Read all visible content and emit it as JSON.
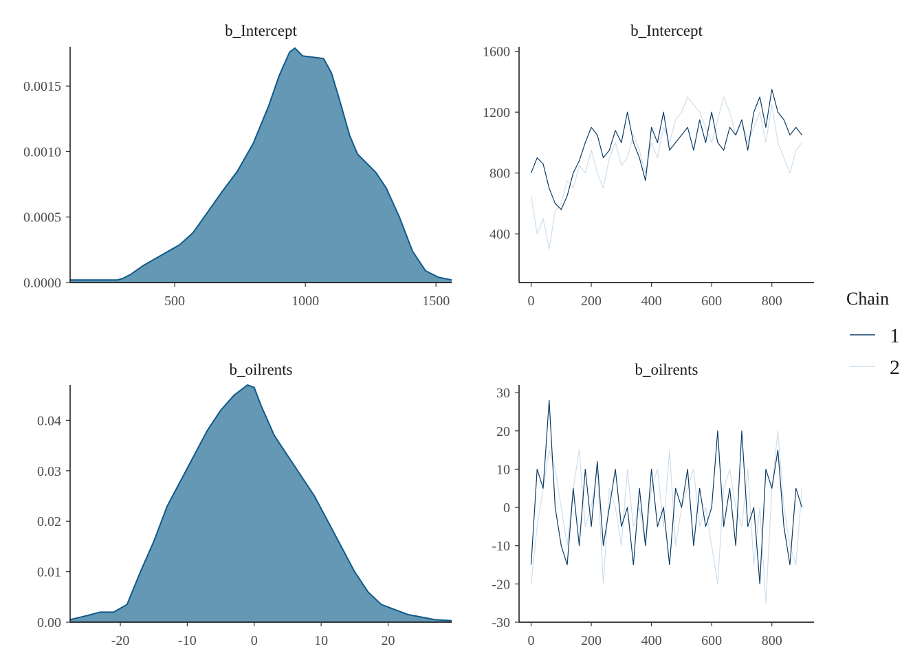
{
  "legend": {
    "title": "Chain",
    "items": [
      {
        "label": "1",
        "color": "#0b3c66"
      },
      {
        "label": "2",
        "color": "#cfdeea"
      }
    ]
  },
  "chart_data": [
    {
      "type": "area",
      "title": "b_Intercept",
      "xlim": [
        100,
        1560
      ],
      "ylim": [
        0,
        0.0018
      ],
      "xticks": [
        500,
        1000,
        1500
      ],
      "xtick_labels": [
        "500",
        "1000",
        "1500"
      ],
      "yticks": [
        0,
        0.0005,
        0.001,
        0.0015
      ],
      "ytick_labels": [
        "0.0000",
        "0.0005",
        "0.0010",
        "0.0015"
      ],
      "fill": "#6498b4",
      "stroke": "#0f5a8a",
      "x": [
        100,
        200,
        280,
        300,
        330,
        380,
        450,
        520,
        570,
        620,
        680,
        740,
        800,
        860,
        900,
        940,
        960,
        990,
        1030,
        1070,
        1100,
        1130,
        1170,
        1200,
        1230,
        1270,
        1310,
        1360,
        1410,
        1460,
        1510,
        1560
      ],
      "y": [
        2e-05,
        2e-05,
        2e-05,
        3e-05,
        6e-05,
        0.00013,
        0.00021,
        0.00029,
        0.00038,
        0.00052,
        0.00069,
        0.00085,
        0.00106,
        0.00135,
        0.00158,
        0.00176,
        0.00179,
        0.00173,
        0.00172,
        0.00171,
        0.0016,
        0.0014,
        0.00112,
        0.00098,
        0.00092,
        0.00084,
        0.00072,
        0.0005,
        0.00024,
        9e-05,
        4e-05,
        2e-05
      ]
    },
    {
      "type": "line",
      "title": "b_Intercept",
      "xlim": [
        -40,
        940
      ],
      "ylim": [
        80,
        1630
      ],
      "xticks": [
        0,
        200,
        400,
        600,
        800
      ],
      "xtick_labels": [
        "0",
        "200",
        "400",
        "600",
        "800"
      ],
      "yticks": [
        400,
        800,
        1200,
        1600
      ],
      "ytick_labels": [
        "400",
        "800",
        "1200",
        "1600"
      ],
      "series": [
        {
          "name": "1",
          "color": "#0b3c66",
          "x": [
            0,
            20,
            40,
            60,
            80,
            100,
            120,
            140,
            160,
            180,
            200,
            220,
            240,
            260,
            280,
            300,
            320,
            340,
            360,
            380,
            400,
            420,
            440,
            460,
            480,
            500,
            520,
            540,
            560,
            580,
            600,
            620,
            640,
            660,
            680,
            700,
            720,
            740,
            760,
            780,
            800,
            820,
            840,
            860,
            880,
            900
          ],
          "y": [
            800,
            900,
            860,
            700,
            600,
            560,
            650,
            800,
            880,
            1000,
            1100,
            1050,
            900,
            950,
            1080,
            1000,
            1200,
            1000,
            900,
            750,
            1100,
            1000,
            1200,
            950,
            1000,
            1050,
            1100,
            950,
            1150,
            1000,
            1200,
            1000,
            950,
            1100,
            1050,
            1150,
            950,
            1200,
            1300,
            1100,
            1350,
            1200,
            1150,
            1050,
            1100,
            1050
          ]
        },
        {
          "name": "2",
          "color": "#cfdeea",
          "x": [
            0,
            20,
            40,
            60,
            80,
            100,
            120,
            140,
            160,
            180,
            200,
            220,
            240,
            260,
            280,
            300,
            320,
            340,
            360,
            380,
            400,
            420,
            440,
            460,
            480,
            500,
            520,
            540,
            560,
            580,
            600,
            620,
            640,
            660,
            680,
            700,
            720,
            740,
            760,
            780,
            800,
            820,
            840,
            860,
            880,
            900
          ],
          "y": [
            650,
            400,
            500,
            300,
            550,
            600,
            750,
            700,
            850,
            800,
            950,
            800,
            700,
            900,
            1000,
            850,
            900,
            1050,
            950,
            800,
            1000,
            900,
            1100,
            1000,
            1150,
            1200,
            1300,
            1250,
            1200,
            1100,
            1000,
            1150,
            1300,
            1200,
            1050,
            1150,
            1000,
            1100,
            1200,
            1000,
            1250,
            1000,
            900,
            800,
            950,
            1000
          ]
        }
      ]
    },
    {
      "type": "area",
      "title": "b_oilrents",
      "xlim": [
        -27.5,
        29.5
      ],
      "ylim": [
        0,
        0.047
      ],
      "xticks": [
        -20,
        -10,
        0,
        10,
        20
      ],
      "xtick_labels": [
        "-20",
        "-10",
        "0",
        "10",
        "20"
      ],
      "yticks": [
        0,
        0.01,
        0.02,
        0.03,
        0.04
      ],
      "ytick_labels": [
        "0.00",
        "0.01",
        "0.02",
        "0.03",
        "0.04"
      ],
      "fill": "#6498b4",
      "stroke": "#0f5a8a",
      "x": [
        -27.5,
        -25,
        -23,
        -21,
        -19,
        -17,
        -15,
        -13,
        -11,
        -9,
        -7,
        -5,
        -3,
        -1,
        0,
        1,
        3,
        5,
        7,
        9,
        11,
        13,
        15,
        17,
        19,
        21,
        23,
        25,
        27,
        29.5
      ],
      "y": [
        0.0005,
        0.0013,
        0.002,
        0.002,
        0.0035,
        0.01,
        0.016,
        0.023,
        0.028,
        0.033,
        0.038,
        0.042,
        0.045,
        0.047,
        0.0465,
        0.043,
        0.037,
        0.033,
        0.029,
        0.025,
        0.02,
        0.015,
        0.01,
        0.006,
        0.0035,
        0.0025,
        0.0015,
        0.001,
        0.0005,
        0.0003
      ]
    },
    {
      "type": "line",
      "title": "b_oilrents",
      "xlim": [
        -40,
        940
      ],
      "ylim": [
        -30,
        32
      ],
      "xticks": [
        0,
        200,
        400,
        600,
        800
      ],
      "xtick_labels": [
        "0",
        "200",
        "400",
        "600",
        "800"
      ],
      "yticks": [
        -30,
        -20,
        -10,
        0,
        10,
        20,
        30
      ],
      "ytick_labels": [
        "-30",
        "-20",
        "-10",
        "0",
        "10",
        "20",
        "30"
      ],
      "series": [
        {
          "name": "1",
          "color": "#0b3c66",
          "x": [
            0,
            20,
            40,
            60,
            80,
            100,
            120,
            140,
            160,
            180,
            200,
            220,
            240,
            260,
            280,
            300,
            320,
            340,
            360,
            380,
            400,
            420,
            440,
            460,
            480,
            500,
            520,
            540,
            560,
            580,
            600,
            620,
            640,
            660,
            680,
            700,
            720,
            740,
            760,
            780,
            800,
            820,
            840,
            860,
            880,
            900
          ],
          "y": [
            -15,
            10,
            5,
            28,
            0,
            -10,
            -15,
            5,
            -10,
            10,
            -5,
            12,
            -10,
            0,
            10,
            -5,
            0,
            -15,
            5,
            -10,
            10,
            -5,
            0,
            -15,
            5,
            0,
            10,
            -10,
            5,
            -5,
            0,
            20,
            -5,
            5,
            -10,
            20,
            -5,
            0,
            -20,
            10,
            5,
            15,
            -5,
            -15,
            5,
            0
          ]
        },
        {
          "name": "2",
          "color": "#cfdeea",
          "x": [
            0,
            20,
            40,
            60,
            80,
            100,
            120,
            140,
            160,
            180,
            200,
            220,
            240,
            260,
            280,
            300,
            320,
            340,
            360,
            380,
            400,
            420,
            440,
            460,
            480,
            500,
            520,
            540,
            560,
            580,
            600,
            620,
            640,
            660,
            680,
            700,
            720,
            740,
            760,
            780,
            800,
            820,
            840,
            860,
            880,
            900
          ],
          "y": [
            -20,
            -5,
            5,
            15,
            10,
            0,
            -10,
            5,
            15,
            -5,
            0,
            10,
            -20,
            5,
            0,
            -10,
            10,
            -5,
            0,
            -10,
            5,
            10,
            -5,
            15,
            -10,
            0,
            5,
            10,
            -5,
            0,
            -10,
            -20,
            5,
            10,
            0,
            -5,
            10,
            -15,
            0,
            -25,
            5,
            20,
            0,
            -10,
            -15,
            5
          ]
        }
      ]
    }
  ]
}
